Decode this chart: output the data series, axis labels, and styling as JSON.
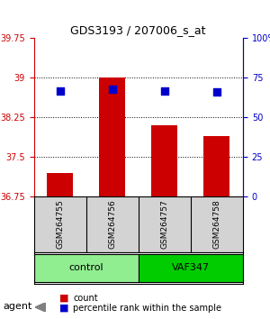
{
  "title": "GDS3193 / 207006_s_at",
  "samples": [
    "GSM264755",
    "GSM264756",
    "GSM264757",
    "GSM264758"
  ],
  "bar_values": [
    37.2,
    39.0,
    38.1,
    37.9
  ],
  "percentile_values": [
    67,
    68,
    67,
    66
  ],
  "ylim_left": [
    36.75,
    39.75
  ],
  "ylim_right": [
    0,
    100
  ],
  "yticks_left": [
    36.75,
    37.5,
    38.25,
    39.0,
    39.75
  ],
  "yticks_right": [
    0,
    25,
    50,
    75,
    100
  ],
  "ytick_labels_left": [
    "36.75",
    "37.5",
    "38.25",
    "39",
    "39.75"
  ],
  "ytick_labels_right": [
    "0",
    "25",
    "50",
    "75",
    "100%"
  ],
  "bar_color": "#cc0000",
  "dot_color": "#0000cc",
  "bar_bottom": 36.75,
  "groups": [
    {
      "label": "control",
      "samples": [
        0,
        1
      ],
      "color": "#90ee90"
    },
    {
      "label": "VAF347",
      "samples": [
        2,
        3
      ],
      "color": "#00cc00"
    }
  ],
  "agent_label": "agent",
  "legend_bar_label": "count",
  "legend_dot_label": "percentile rank within the sample",
  "grid_color": "#000000",
  "background_color": "#ffffff",
  "sample_box_color": "#d3d3d3"
}
